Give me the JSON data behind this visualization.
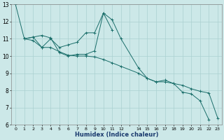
{
  "xlabel": "Humidex (Indice chaleur)",
  "ylabel": "",
  "bg_color": "#cce8e8",
  "grid_color": "#aad0d0",
  "line_color": "#1a6e6a",
  "xlim": [
    -0.5,
    23.5
  ],
  "ylim": [
    6,
    13
  ],
  "yticks": [
    6,
    7,
    8,
    9,
    10,
    11,
    12,
    13
  ],
  "series": [
    {
      "x": [
        0,
        1,
        2,
        3,
        4,
        5,
        6,
        7,
        8,
        9,
        10,
        11,
        12,
        14,
        15,
        16,
        17,
        18,
        19,
        20,
        21,
        22
      ],
      "y": [
        13.0,
        11.0,
        11.1,
        11.2,
        11.05,
        10.2,
        10.0,
        10.1,
        10.1,
        10.3,
        12.5,
        12.1,
        11.0,
        9.3,
        8.7,
        8.5,
        8.6,
        8.4,
        7.9,
        7.8,
        7.4,
        6.3
      ]
    },
    {
      "x": [
        1,
        2,
        3,
        4,
        5,
        6,
        7,
        8,
        9,
        10,
        11
      ],
      "y": [
        11.0,
        11.1,
        10.5,
        11.0,
        10.5,
        10.65,
        10.8,
        11.35,
        11.35,
        12.5,
        11.5
      ]
    },
    {
      "x": [
        1,
        2,
        3,
        4,
        5,
        6,
        7,
        8,
        9,
        10,
        11,
        12,
        14,
        15,
        16,
        17,
        18,
        19,
        20,
        21,
        22,
        23
      ],
      "y": [
        11.0,
        10.9,
        10.5,
        10.5,
        10.25,
        10.05,
        10.0,
        10.0,
        9.95,
        9.8,
        9.6,
        9.4,
        9.0,
        8.7,
        8.5,
        8.5,
        8.4,
        8.3,
        8.1,
        7.95,
        7.85,
        6.4
      ]
    }
  ]
}
